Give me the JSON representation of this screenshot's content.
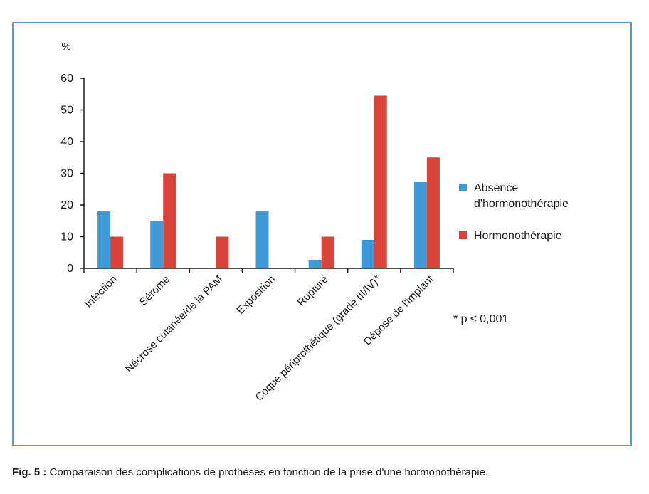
{
  "chart_data": {
    "type": "bar",
    "ylabel": "%",
    "ylim": [
      0,
      60
    ],
    "yticks": [
      0,
      10,
      20,
      30,
      40,
      50,
      60
    ],
    "categories": [
      "Infection",
      "Sérome",
      "Nécrose cutanée/de la PAM",
      "Exposition",
      "Rupture",
      "Coque périprothétique (grade III/IV)*",
      "Dépose de l'implant"
    ],
    "series": [
      {
        "name": "Absence d'hormonothérapie",
        "legend_lines": [
          "Absence",
          "d'hormonothérapie"
        ],
        "color": "#3f9ad8",
        "values": [
          18,
          15,
          0,
          18,
          2.7,
          9,
          27.3
        ]
      },
      {
        "name": "Hormonothérapie",
        "legend_lines": [
          "Hormonothérapie"
        ],
        "color": "#d9433a",
        "values": [
          10,
          30,
          10,
          0,
          10,
          54.5,
          35
        ]
      }
    ],
    "annotation": "* p ≤ 0,001",
    "legend_position": "right",
    "grid": false
  },
  "caption": {
    "label": "Fig. 5 :",
    "text": " Comparaison des complications de prothèses en fonction de la prise d'une hormonothérapie."
  }
}
